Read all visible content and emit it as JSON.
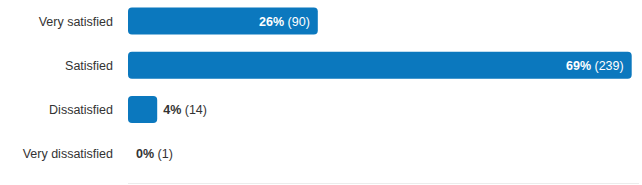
{
  "chart_data": {
    "type": "bar",
    "orientation": "horizontal",
    "categories": [
      "Very satisfied",
      "Satisfied",
      "Dissatisfied",
      "Very dissatisfied"
    ],
    "values": [
      26,
      69,
      4,
      0
    ],
    "value_labels": [
      "26% (90)",
      "69% (239)",
      "4% (14)",
      "0% (1)"
    ],
    "color": "#0b78be",
    "xlim": [
      0,
      70
    ],
    "tick_labels": "y",
    "grid": false,
    "data_labels": true
  }
}
